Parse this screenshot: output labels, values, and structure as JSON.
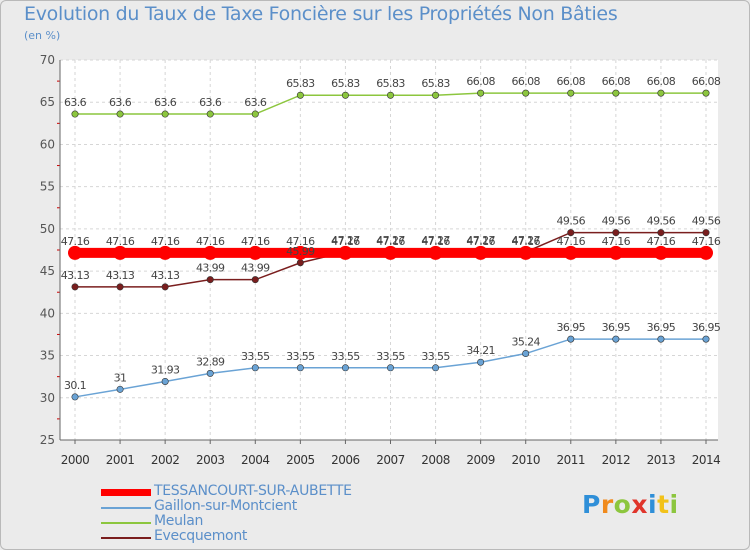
{
  "header": {
    "title": "Evolution du Taux de Taxe Foncière sur les Propriétés Non Bâties",
    "subtitle": "(en %)"
  },
  "chart_data": {
    "type": "line",
    "title": "Evolution du Taux de Taxe Foncière sur les Propriétés Non Bâties",
    "ylabel": "(en %)",
    "xlabel": "",
    "ylim": [
      25,
      70
    ],
    "yticks": [
      "25",
      "30",
      "35",
      "40",
      "45",
      "50",
      "55",
      "60",
      "65",
      "70"
    ],
    "categories": [
      "2000",
      "2001",
      "2002",
      "2003",
      "2004",
      "2005",
      "2006",
      "2007",
      "2008",
      "2009",
      "2010",
      "2011",
      "2012",
      "2013",
      "2014"
    ],
    "grid": true,
    "legend_position": "bottom-left",
    "series": [
      {
        "name": "Meulan",
        "color": "#8cc63e",
        "values": [
          63.6,
          63.6,
          63.6,
          63.6,
          63.6,
          65.83,
          65.83,
          65.83,
          65.83,
          66.08,
          66.08,
          66.08,
          66.08,
          66.08,
          66.08
        ],
        "labels": [
          "63.6",
          "63.6",
          "63.6",
          "63.6",
          "63.6",
          "65.83",
          "65.83",
          "65.83",
          "65.83",
          "66.08",
          "66.08",
          "66.08",
          "66.08",
          "66.08",
          "66.08"
        ]
      },
      {
        "name": "Gaillon-sur-Montcient",
        "color": "#6aa3d5",
        "values": [
          30.1,
          31,
          31.93,
          32.89,
          33.55,
          33.55,
          33.55,
          33.55,
          33.55,
          34.21,
          35.24,
          36.95,
          36.95,
          36.95,
          36.95
        ],
        "labels": [
          "30.1",
          "31",
          "31.93",
          "32.89",
          "33.55",
          "33.55",
          "33.55",
          "33.55",
          "33.55",
          "34.21",
          "35.24",
          "36.95",
          "36.95",
          "36.95",
          "36.95"
        ]
      },
      {
        "name": "Evecquemont",
        "color": "#7a1e1e",
        "values": [
          43.13,
          43.13,
          43.13,
          43.99,
          43.99,
          45.99,
          47.27,
          47.27,
          47.27,
          47.27,
          47.27,
          49.56,
          49.56,
          49.56,
          49.56
        ],
        "labels": [
          "43.13",
          "43.13",
          "43.13",
          "43.99",
          "43.99",
          "45.99",
          "47.27",
          "47.27",
          "47.27",
          "47.27",
          "47.27",
          "49.56",
          "49.56",
          "49.56",
          "49.56"
        ]
      },
      {
        "name": "TESSANCOURT-SUR-AUBETTE",
        "color": "#ff0000",
        "thick": true,
        "values": [
          47.16,
          47.16,
          47.16,
          47.16,
          47.16,
          47.16,
          47.16,
          47.16,
          47.16,
          47.16,
          47.16,
          47.16,
          47.16,
          47.16,
          47.16
        ],
        "labels": [
          "47.16",
          "47.16",
          "47.16",
          "47.16",
          "47.16",
          "47.16",
          "47.16",
          "47.16",
          "47.16",
          "47.16",
          "47.16",
          "47.16",
          "47.16",
          "47.16",
          "47.16"
        ]
      }
    ]
  },
  "legend": [
    {
      "label": "TESSANCOURT-SUR-AUBETTE",
      "color": "#ff0000"
    },
    {
      "label": "Gaillon-sur-Montcient",
      "color": "#6aa3d5"
    },
    {
      "label": "Meulan",
      "color": "#8cc63e"
    },
    {
      "label": "Evecquemont",
      "color": "#7a1e1e"
    }
  ],
  "logo": {
    "text": "Proxiti",
    "colors": [
      "#2f8fd8",
      "#f08a1c",
      "#8cc63e",
      "#e0352b",
      "#2f8fd8",
      "#f2c21a",
      "#8cc63e"
    ]
  }
}
